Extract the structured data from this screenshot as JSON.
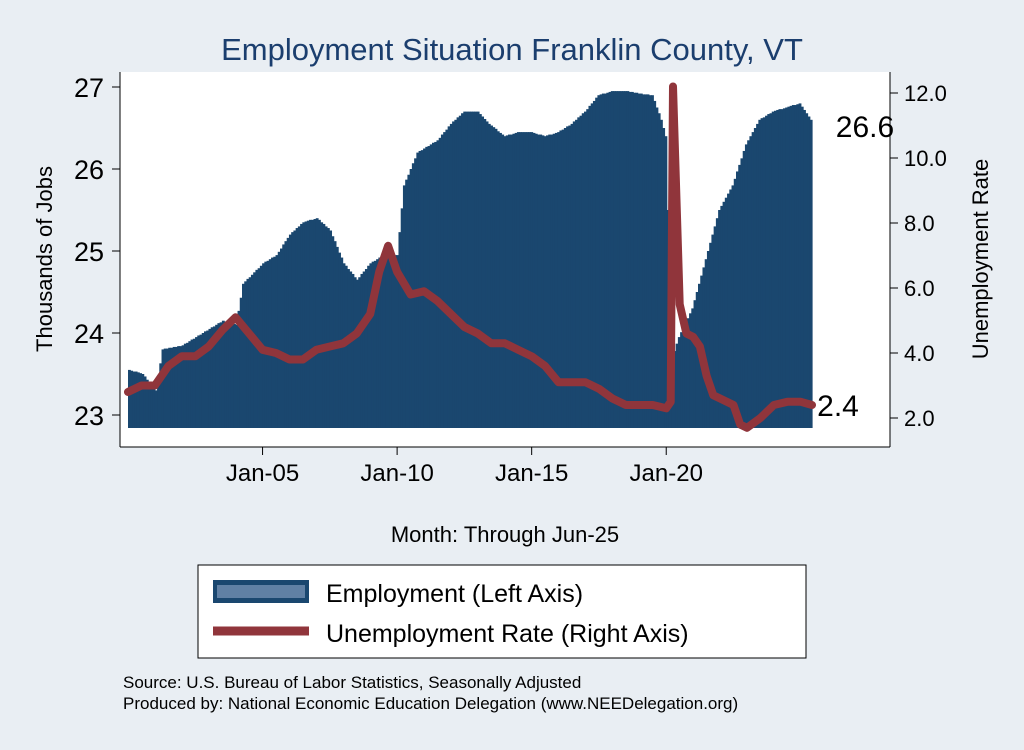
{
  "chart_data": {
    "type": "area",
    "title": "Employment Situation Franklin  County, VT",
    "xlabel": "Month: Through Jun-25",
    "ylabel_left": "Thousands of Jobs",
    "ylabel_right": "Unemployment Rate",
    "x_ticks": [
      "Jan-05",
      "Jan-10",
      "Jan-15",
      "Jan-20"
    ],
    "y_left_ticks": [
      "23",
      "24",
      "25",
      "26",
      "27"
    ],
    "y_right_ticks": [
      "2.0",
      "4.0",
      "6.0",
      "8.0",
      "10.0",
      "12.0"
    ],
    "x_range": [
      "Jan-00",
      "Jun-25"
    ],
    "y_left_range": [
      22.85,
      27.2
    ],
    "y_right_range": [
      1.6,
      12.4
    ],
    "grid": false,
    "legend_position": "bottom",
    "end_labels": {
      "employment": "26.6",
      "unemployment": "2.4"
    },
    "series": [
      {
        "name": "Employment (Left Axis)",
        "axis": "left",
        "color": "#1a476f",
        "points": [
          [
            "Jan-00",
            23.55
          ],
          [
            "Jul-00",
            23.5
          ],
          [
            "Jan-01",
            23.3
          ],
          [
            "Apr-01",
            23.8
          ],
          [
            "Jan-02",
            23.85
          ],
          [
            "Oct-02",
            24.0
          ],
          [
            "Jul-03",
            24.15
          ],
          [
            "Jan-04",
            24.1
          ],
          [
            "Apr-04",
            24.6
          ],
          [
            "Jan-05",
            24.85
          ],
          [
            "Jul-05",
            24.95
          ],
          [
            "Jan-06",
            25.2
          ],
          [
            "Jul-06",
            25.35
          ],
          [
            "Jan-07",
            25.4
          ],
          [
            "Jul-07",
            25.25
          ],
          [
            "Jan-08",
            24.85
          ],
          [
            "Jul-08",
            24.65
          ],
          [
            "Jan-09",
            24.85
          ],
          [
            "Jul-09",
            24.95
          ],
          [
            "Jan-10",
            24.95
          ],
          [
            "Apr-10",
            25.8
          ],
          [
            "Oct-10",
            26.2
          ],
          [
            "Jul-11",
            26.35
          ],
          [
            "Jan-12",
            26.55
          ],
          [
            "Jul-12",
            26.7
          ],
          [
            "Jan-13",
            26.7
          ],
          [
            "Jun-13",
            26.55
          ],
          [
            "Jan-14",
            26.4
          ],
          [
            "Jul-14",
            26.45
          ],
          [
            "Jan-15",
            26.45
          ],
          [
            "Jul-15",
            26.4
          ],
          [
            "Jan-16",
            26.45
          ],
          [
            "Jul-16",
            26.55
          ],
          [
            "Jan-17",
            26.7
          ],
          [
            "Jul-17",
            26.9
          ],
          [
            "Jan-18",
            26.95
          ],
          [
            "Jul-18",
            26.95
          ],
          [
            "Jan-19",
            26.92
          ],
          [
            "Jul-19",
            26.9
          ],
          [
            "Nov-19",
            26.6
          ],
          [
            "Jan-20",
            26.4
          ],
          [
            "Apr-20",
            23.7
          ],
          [
            "Jul-20",
            23.95
          ],
          [
            "Jan-21",
            24.3
          ],
          [
            "Jul-21",
            24.9
          ],
          [
            "Jan-22",
            25.5
          ],
          [
            "Jul-22",
            25.8
          ],
          [
            "Jan-23",
            26.3
          ],
          [
            "Jul-23",
            26.6
          ],
          [
            "Jan-24",
            26.7
          ],
          [
            "Jul-24",
            26.75
          ],
          [
            "Jan-25",
            26.8
          ],
          [
            "Jun-25",
            26.6
          ]
        ]
      },
      {
        "name": "Unemployment Rate (Right Axis)",
        "axis": "right",
        "color": "#90353b",
        "points": [
          [
            "Jan-00",
            2.8
          ],
          [
            "Jul-00",
            3.0
          ],
          [
            "Jan-01",
            3.0
          ],
          [
            "Jul-01",
            3.6
          ],
          [
            "Jan-02",
            3.9
          ],
          [
            "Jul-02",
            3.9
          ],
          [
            "Jan-03",
            4.2
          ],
          [
            "Jul-03",
            4.7
          ],
          [
            "Jan-04",
            5.1
          ],
          [
            "Jul-04",
            4.6
          ],
          [
            "Jan-05",
            4.1
          ],
          [
            "Jul-05",
            4.0
          ],
          [
            "Jan-06",
            3.8
          ],
          [
            "Jul-06",
            3.8
          ],
          [
            "Jan-07",
            4.1
          ],
          [
            "Jul-07",
            4.2
          ],
          [
            "Jan-08",
            4.3
          ],
          [
            "Jul-08",
            4.6
          ],
          [
            "Jan-09",
            5.2
          ],
          [
            "May-09",
            6.5
          ],
          [
            "Sep-09",
            7.3
          ],
          [
            "Jan-10",
            6.5
          ],
          [
            "Jul-10",
            5.8
          ],
          [
            "Jan-11",
            5.9
          ],
          [
            "Jul-11",
            5.6
          ],
          [
            "Jan-12",
            5.2
          ],
          [
            "Jul-12",
            4.8
          ],
          [
            "Jan-13",
            4.6
          ],
          [
            "Jul-13",
            4.3
          ],
          [
            "Jan-14",
            4.3
          ],
          [
            "Jul-14",
            4.1
          ],
          [
            "Jan-15",
            3.9
          ],
          [
            "Jul-15",
            3.6
          ],
          [
            "Jan-16",
            3.1
          ],
          [
            "Jul-16",
            3.1
          ],
          [
            "Jan-17",
            3.1
          ],
          [
            "Jul-17",
            2.9
          ],
          [
            "Jan-18",
            2.6
          ],
          [
            "Jul-18",
            2.4
          ],
          [
            "Jan-19",
            2.4
          ],
          [
            "Jul-19",
            2.4
          ],
          [
            "Jan-20",
            2.3
          ],
          [
            "Mar-20",
            2.5
          ],
          [
            "Apr-20",
            12.2
          ],
          [
            "May-20",
            10.0
          ],
          [
            "Jul-20",
            5.5
          ],
          [
            "Oct-20",
            4.6
          ],
          [
            "Jan-21",
            4.5
          ],
          [
            "Apr-21",
            4.2
          ],
          [
            "Jul-21",
            3.3
          ],
          [
            "Oct-21",
            2.7
          ],
          [
            "Jan-22",
            2.6
          ],
          [
            "Jul-22",
            2.4
          ],
          [
            "Oct-22",
            1.8
          ],
          [
            "Jan-23",
            1.7
          ],
          [
            "Jul-23",
            2.0
          ],
          [
            "Jan-24",
            2.4
          ],
          [
            "Jul-24",
            2.5
          ],
          [
            "Jan-25",
            2.5
          ],
          [
            "Jun-25",
            2.4
          ]
        ]
      }
    ]
  },
  "legend": {
    "items": [
      {
        "label": "Employment (Left Axis)",
        "color": "#1a476f"
      },
      {
        "label": "Unemployment Rate (Right Axis)",
        "color": "#90353b"
      }
    ]
  },
  "footer": {
    "source": "Source: U.S. Bureau of Labor Statistics, Seasonally Adjusted",
    "produced_by": "Produced by: National Economic Education Delegation (www.NEEDelegation.org)"
  }
}
